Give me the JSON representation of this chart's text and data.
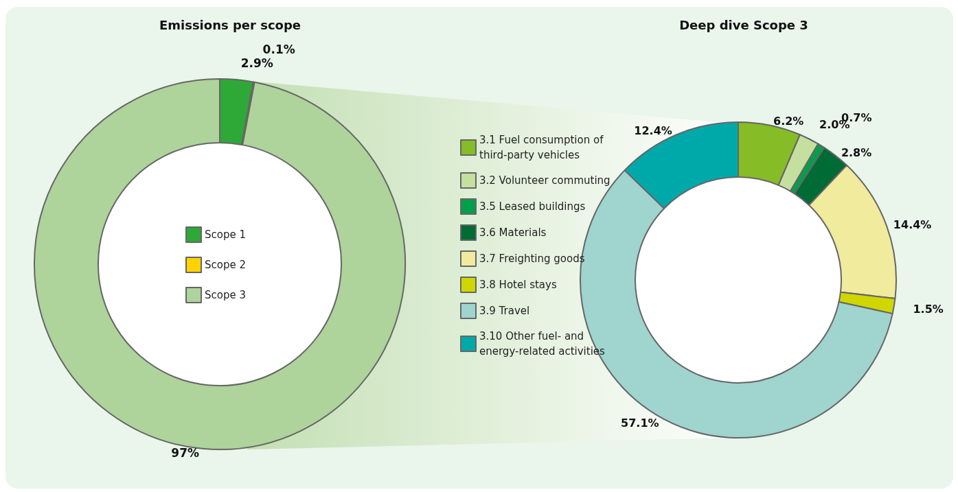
{
  "chart_data": [
    {
      "type": "donut",
      "title": "Emissions per scope",
      "categories": [
        "Scope 1",
        "Scope 2",
        "Scope 3"
      ],
      "values": [
        2.9,
        0.1,
        97
      ],
      "colors": [
        "#2ea836",
        "#ffd200",
        "#aed39b"
      ],
      "value_labels": [
        "2.9%",
        "0.1%",
        "97%"
      ],
      "legend": "center"
    },
    {
      "type": "donut",
      "title": "Deep dive Scope 3",
      "categories": [
        "3.1 Fuel consumption of third-party vehicles",
        "3.2 Volunteer commuting",
        "3.5 Leased buildings",
        "3.6 Materials",
        "3.7 Freighting goods",
        "3.8 Hotel stays",
        "3.9 Travel",
        "3.10 Other fuel- and energy-related activities"
      ],
      "values": [
        6.2,
        2.0,
        0.7,
        2.8,
        14.4,
        1.5,
        57.1,
        12.4
      ],
      "colors": [
        "#86bc25",
        "#c5df9f",
        "#00a04a",
        "#006b35",
        "#f0eb9d",
        "#cfd600",
        "#9fd4cf",
        "#00a9a9"
      ],
      "value_labels": [
        "6.2%",
        "2.0%",
        "0.7%",
        "2.8%",
        "14.4%",
        "1.5%",
        "57.1%",
        "12.4%"
      ],
      "legend": "left"
    }
  ]
}
